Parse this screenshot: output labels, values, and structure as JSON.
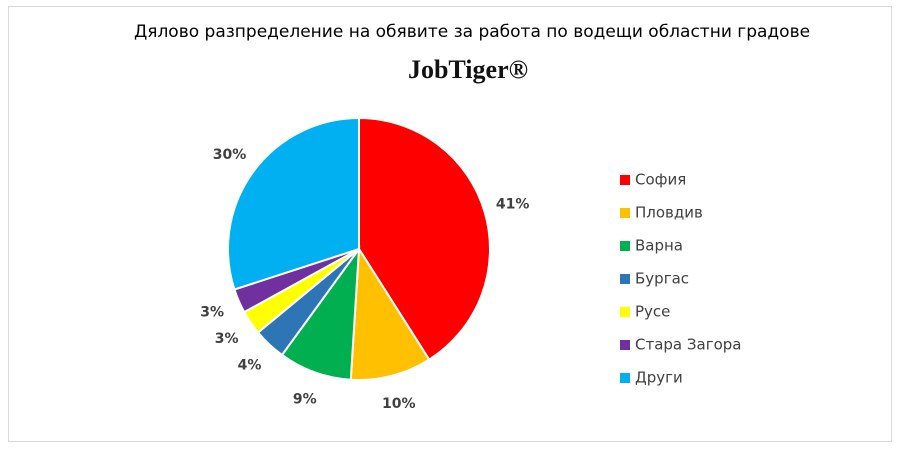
{
  "chart_data": {
    "type": "pie",
    "title": "Дялово разпределение на обявите за работа по водещи областни градове",
    "logo": "JobTiger®",
    "categories": [
      "София",
      "Пловдив",
      "Варна",
      "Бургас",
      "Русе",
      "Стара Загора",
      "Други"
    ],
    "values": [
      41,
      10,
      9,
      4,
      3,
      3,
      30
    ],
    "value_labels": [
      "41%",
      "10%",
      "9%",
      "4%",
      "3%",
      "3%",
      "30%"
    ],
    "colors": [
      "#ff0000",
      "#ffc000",
      "#00b050",
      "#2e75b6",
      "#ffff00",
      "#7030a0",
      "#00b0f0"
    ],
    "legend": "right"
  }
}
